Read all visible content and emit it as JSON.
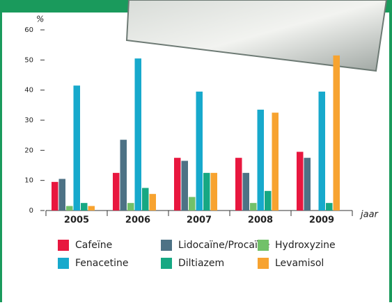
{
  "chart_data": {
    "type": "bar",
    "y_label": "%",
    "x_label": "jaar",
    "categories": [
      "2005",
      "2006",
      "2007",
      "2008",
      "2009"
    ],
    "series": [
      {
        "name": "Cafeïne",
        "color": "#e8173f",
        "values": [
          9.5,
          12.5,
          17.5,
          17.5,
          19.5
        ]
      },
      {
        "name": "Lidocaïne/Procaïne",
        "color": "#4d7285",
        "values": [
          10.5,
          23.5,
          16.5,
          12.5,
          17.5
        ]
      },
      {
        "name": "Hydroxyzine",
        "color": "#72c169",
        "values": [
          1.5,
          2.5,
          4.5,
          2.5,
          0
        ]
      },
      {
        "name": "Fenacetine",
        "color": "#17a9cc",
        "values": [
          41.5,
          50.5,
          39.5,
          33.5,
          39.5
        ]
      },
      {
        "name": "Diltiazem",
        "color": "#16a883",
        "values": [
          2.5,
          7.5,
          12.5,
          6.5,
          2.5
        ]
      },
      {
        "name": "Levamisol",
        "color": "#f7a330",
        "values": [
          1.5,
          5.5,
          12.5,
          32.5,
          51.5
        ]
      }
    ],
    "ylim": [
      0,
      60
    ],
    "yticks": [
      0,
      10,
      20,
      30,
      40,
      50,
      60
    ]
  }
}
